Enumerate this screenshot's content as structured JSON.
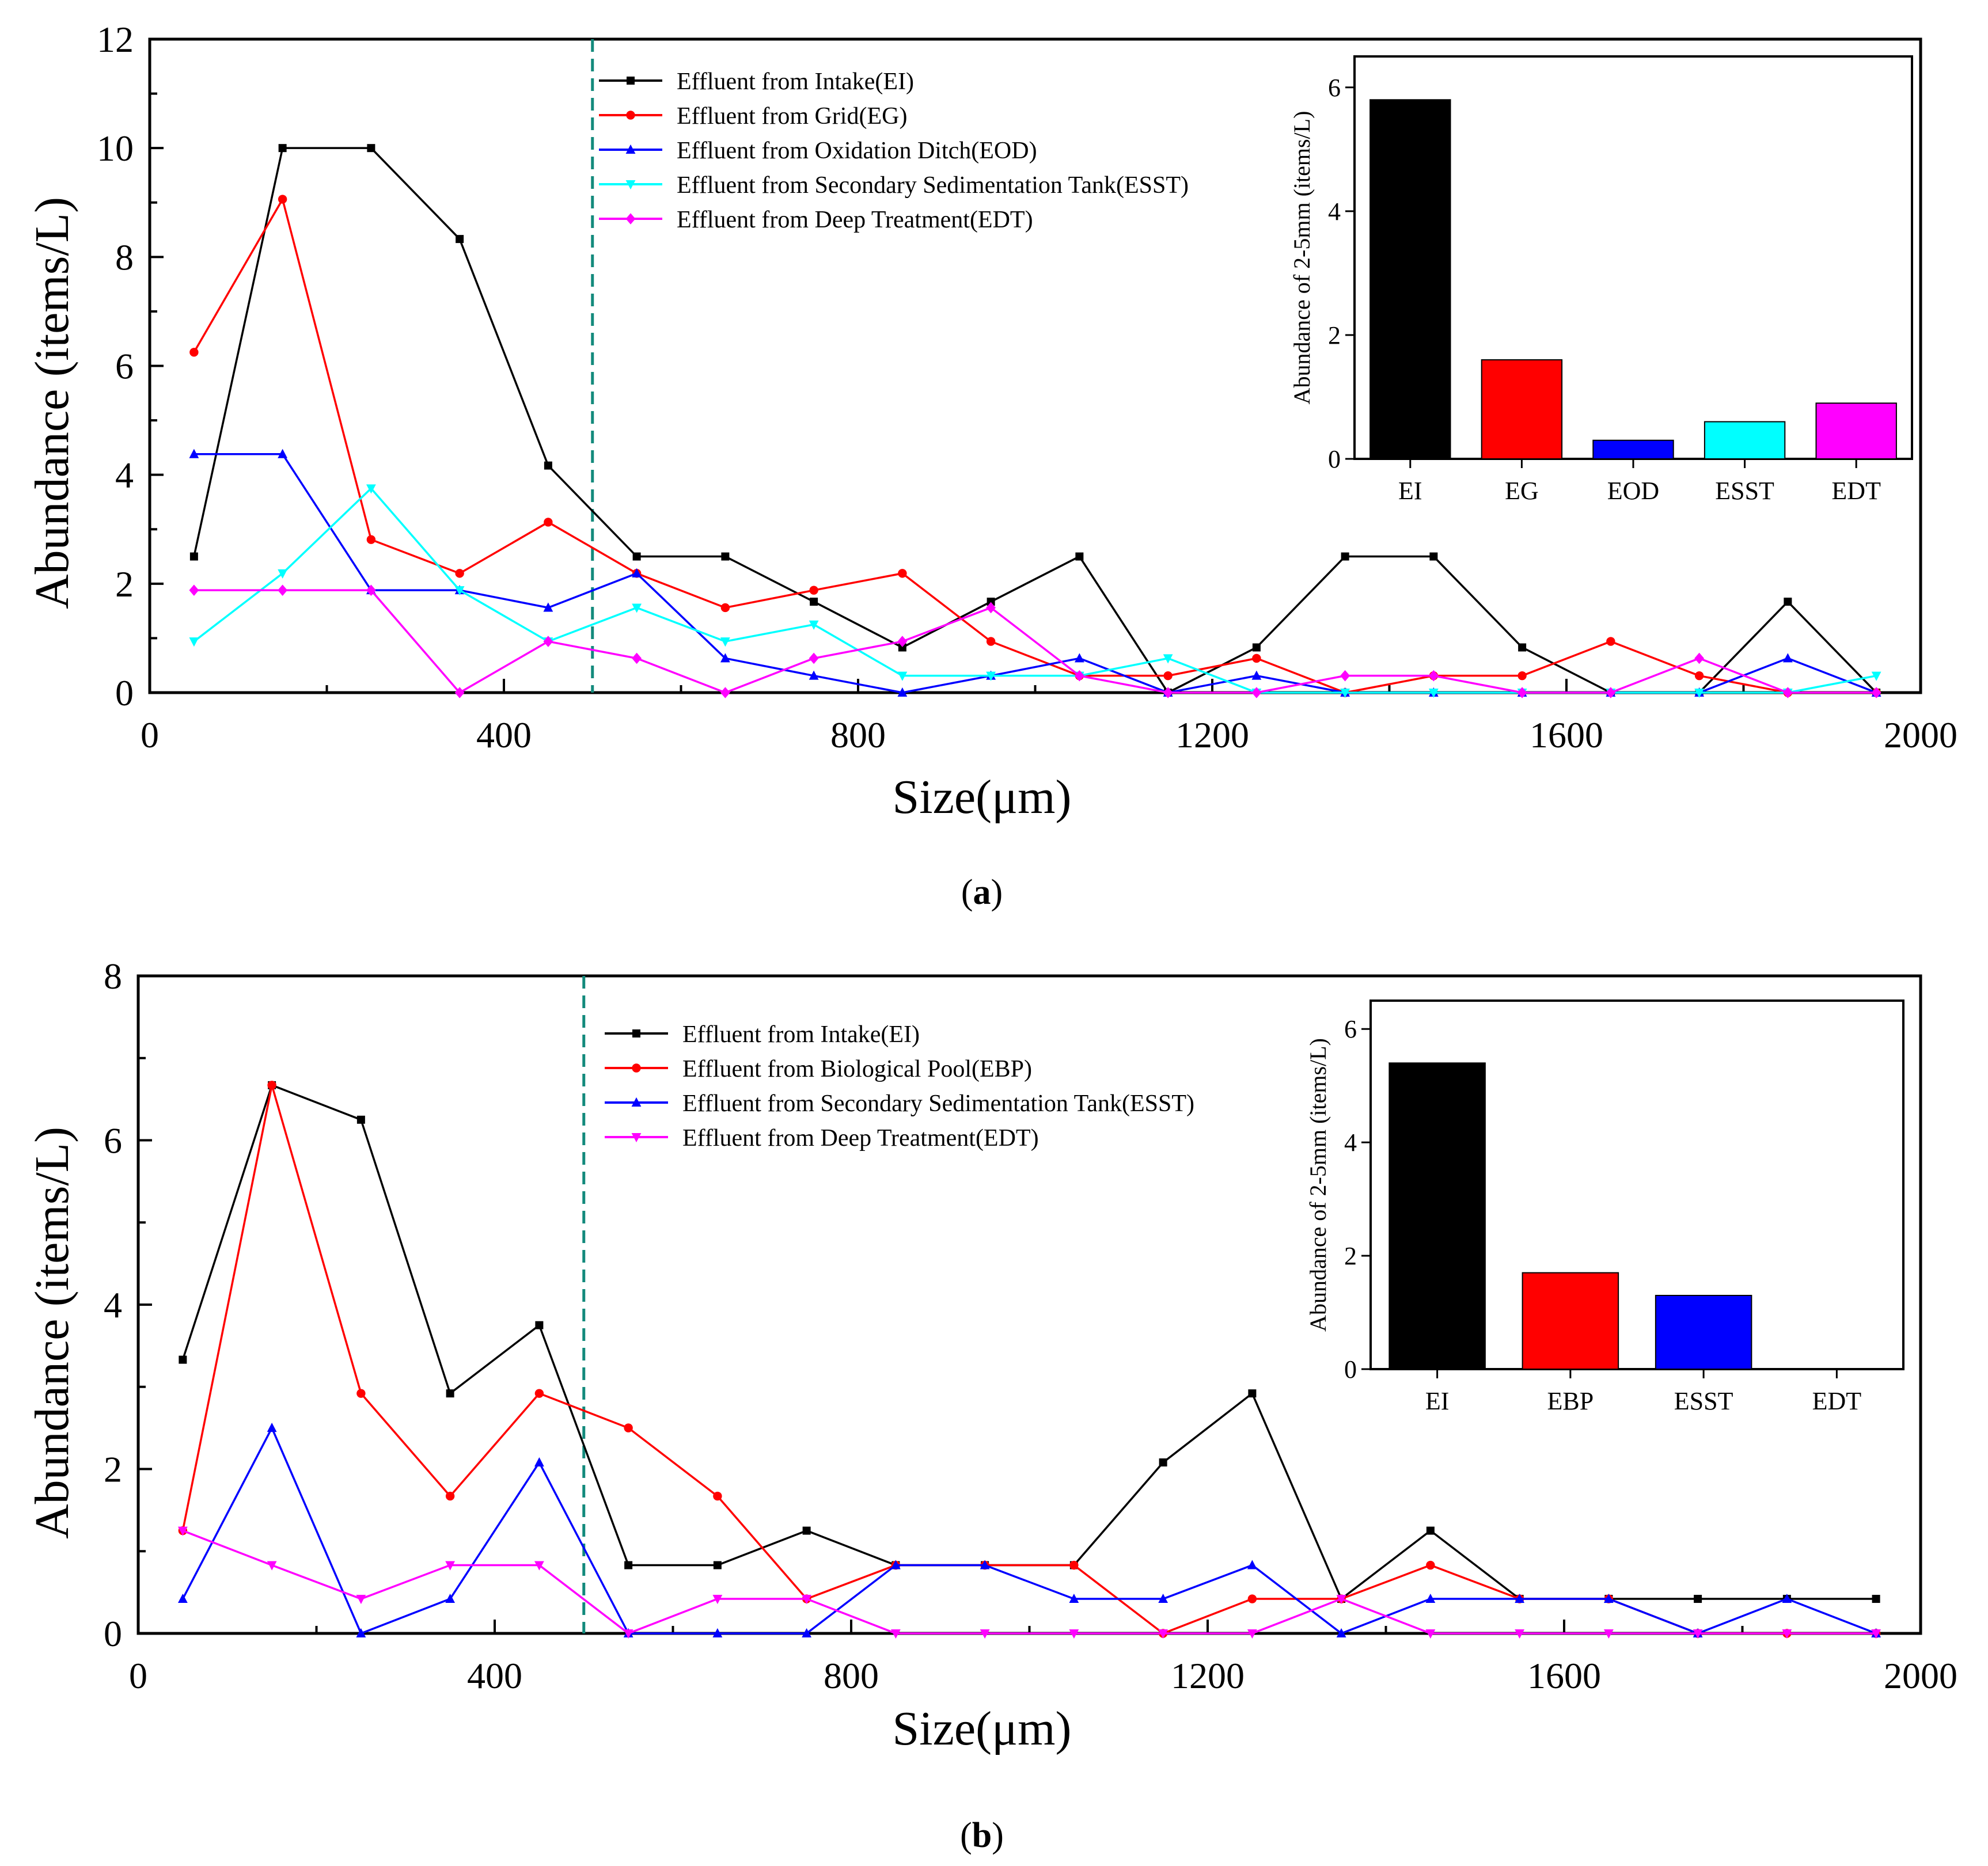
{
  "chart_data": [
    {
      "panel_label": "a",
      "type": "line",
      "xlabel": "Size(μm)",
      "ylabel": "Abundance (items/L)",
      "xlim": [
        0,
        2000
      ],
      "ylim": [
        0,
        12
      ],
      "xticks": [
        0,
        400,
        800,
        1200,
        1600,
        2000
      ],
      "yticks": [
        0,
        2,
        4,
        6,
        8,
        10,
        12
      ],
      "reference_line_x": 500,
      "reference_line_color": "#138a7c",
      "legend_position": "top-center",
      "x": [
        50,
        150,
        250,
        350,
        450,
        550,
        650,
        750,
        850,
        950,
        1050,
        1150,
        1250,
        1350,
        1450,
        1550,
        1650,
        1750,
        1850,
        1950
      ],
      "series": [
        {
          "name": "Effluent from Intake(EI)",
          "color": "#000000",
          "marker": "square",
          "values": [
            2.5,
            10.0,
            10.0,
            8.33,
            4.17,
            2.5,
            2.5,
            1.67,
            0.83,
            1.67,
            2.5,
            0.0,
            0.83,
            2.5,
            2.5,
            0.83,
            0.0,
            0.0,
            1.67,
            0.0
          ]
        },
        {
          "name": "Effluent from Grid(EG)",
          "color": "#ff0000",
          "marker": "circle",
          "values": [
            6.25,
            9.06,
            2.81,
            2.19,
            3.13,
            2.19,
            1.56,
            1.88,
            2.19,
            0.94,
            0.31,
            0.31,
            0.63,
            0.0,
            0.31,
            0.31,
            0.94,
            0.31,
            0.0,
            0.0
          ]
        },
        {
          "name": "Effluent from Oxidation Ditch(EOD)",
          "color": "#0000ff",
          "marker": "triangle-up",
          "values": [
            4.38,
            4.38,
            1.88,
            1.88,
            1.56,
            2.19,
            0.63,
            0.31,
            0.0,
            0.31,
            0.63,
            0.0,
            0.31,
            0.0,
            0.0,
            0.0,
            0.0,
            0.0,
            0.63,
            0.0
          ]
        },
        {
          "name": "Effluent from Secondary Sedimentation Tank(ESST)",
          "color": "#00ffff",
          "marker": "triangle-down",
          "values": [
            0.94,
            2.19,
            3.75,
            1.88,
            0.94,
            1.56,
            0.94,
            1.25,
            0.31,
            0.31,
            0.31,
            0.63,
            0.0,
            0.0,
            0.0,
            0.0,
            0.0,
            0.0,
            0.0,
            0.31
          ]
        },
        {
          "name": "Effluent from Deep Treatment(EDT)",
          "color": "#ff00ff",
          "marker": "diamond",
          "values": [
            1.88,
            1.88,
            1.88,
            0.0,
            0.94,
            0.63,
            0.0,
            0.63,
            0.94,
            1.56,
            0.31,
            0.0,
            0.0,
            0.31,
            0.31,
            0.0,
            0.0,
            0.63,
            0.0,
            0.0
          ]
        }
      ],
      "inset": {
        "type": "bar",
        "ylabel": "Abundance of 2-5mm (items/L)",
        "ylim": [
          0,
          6.5
        ],
        "yticks": [
          0,
          2,
          4,
          6
        ],
        "categories": [
          "EI",
          "EG",
          "EOD",
          "ESST",
          "EDT"
        ],
        "values": [
          5.8,
          1.6,
          0.3,
          0.6,
          0.9
        ],
        "colors": [
          "#000000",
          "#ff0000",
          "#0000ff",
          "#00ffff",
          "#ff00ff"
        ]
      }
    },
    {
      "panel_label": "b",
      "type": "line",
      "xlabel": "Size(μm)",
      "ylabel": "Abundance (items/L)",
      "xlim": [
        0,
        2000
      ],
      "ylim": [
        0,
        8
      ],
      "xticks": [
        0,
        400,
        800,
        1200,
        1600,
        2000
      ],
      "yticks": [
        0,
        2,
        4,
        6,
        8
      ],
      "reference_line_x": 500,
      "reference_line_color": "#138a7c",
      "legend_position": "top-center",
      "x": [
        50,
        150,
        250,
        350,
        450,
        550,
        650,
        750,
        850,
        950,
        1050,
        1150,
        1250,
        1350,
        1450,
        1550,
        1650,
        1750,
        1850,
        1950
      ],
      "series": [
        {
          "name": "Effluent from Intake(EI)",
          "color": "#000000",
          "marker": "square",
          "values": [
            3.33,
            6.67,
            6.25,
            2.92,
            3.75,
            0.83,
            0.83,
            1.25,
            0.83,
            0.83,
            0.83,
            2.08,
            2.92,
            0.42,
            1.25,
            0.42,
            0.42,
            0.42,
            0.42,
            0.42
          ]
        },
        {
          "name": "Effluent from Biological Pool(EBP)",
          "color": "#ff0000",
          "marker": "circle",
          "values": [
            1.25,
            6.67,
            2.92,
            1.67,
            2.92,
            2.5,
            1.67,
            0.42,
            0.83,
            0.83,
            0.83,
            0.0,
            0.42,
            0.42,
            0.83,
            0.42,
            0.42,
            0.0,
            0.0,
            0.0
          ]
        },
        {
          "name": "Effluent from Secondary Sedimentation Tank(ESST)",
          "color": "#0000ff",
          "marker": "triangle-up",
          "values": [
            0.42,
            2.5,
            0.0,
            0.42,
            2.08,
            0.0,
            0.0,
            0.0,
            0.83,
            0.83,
            0.42,
            0.42,
            0.83,
            0.0,
            0.42,
            0.42,
            0.42,
            0.0,
            0.42,
            0.0
          ]
        },
        {
          "name": "Effluent from Deep Treatment(EDT)",
          "color": "#ff00ff",
          "marker": "triangle-down",
          "values": [
            1.25,
            0.83,
            0.42,
            0.83,
            0.83,
            0.0,
            0.42,
            0.42,
            0.0,
            0.0,
            0.0,
            0.0,
            0.0,
            0.42,
            0.0,
            0.0,
            0.0,
            0.0,
            0.0,
            0.0
          ]
        }
      ],
      "inset": {
        "type": "bar",
        "ylabel": "Abundance of 2-5mm (items/L)",
        "ylim": [
          0,
          6.5
        ],
        "yticks": [
          0,
          2,
          4,
          6
        ],
        "categories": [
          "EI",
          "EBP",
          "ESST",
          "EDT"
        ],
        "values": [
          5.4,
          1.7,
          1.3,
          0.0
        ],
        "colors": [
          "#000000",
          "#ff0000",
          "#0000ff",
          "#ff00ff"
        ]
      }
    }
  ]
}
